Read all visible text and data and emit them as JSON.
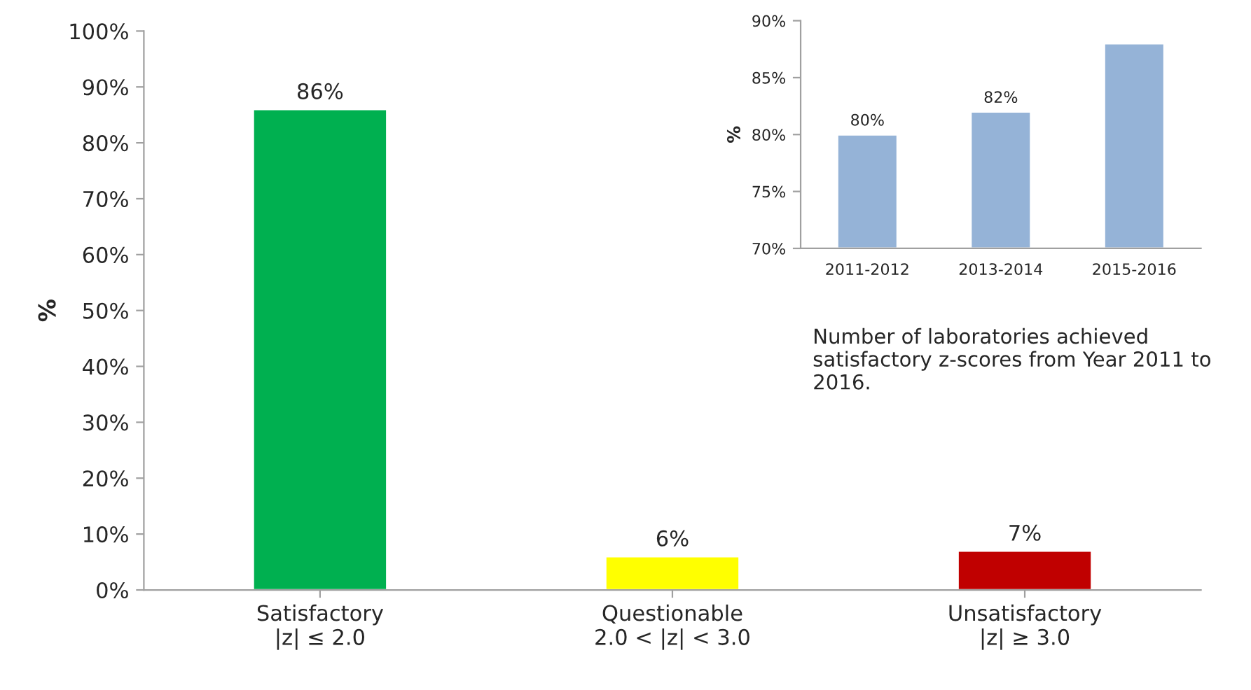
{
  "chart_data": [
    {
      "type": "bar",
      "ylabel": "%",
      "categories": [
        "Satisfactory\n|z| ≤ 2.0",
        "Questionable\n2.0 < |z| < 3.0",
        "Unsatisfactory\n|z| ≥ 3.0"
      ],
      "values": [
        86,
        6,
        7
      ],
      "colors": [
        "#00b050",
        "#ffff00",
        "#c00000"
      ],
      "ylim": [
        0,
        100
      ],
      "yticks": [
        {
          "value": 0,
          "label": "0%"
        },
        {
          "value": 10,
          "label": "10%"
        },
        {
          "value": 20,
          "label": "20%"
        },
        {
          "value": 30,
          "label": "30%"
        },
        {
          "value": 40,
          "label": "40%"
        },
        {
          "value": 50,
          "label": "50%"
        },
        {
          "value": 60,
          "label": "60%"
        },
        {
          "value": 70,
          "label": "70%"
        },
        {
          "value": 80,
          "label": "80%"
        },
        {
          "value": 90,
          "label": "90%"
        },
        {
          "value": 100,
          "label": "100%"
        }
      ],
      "value_labels": [
        "86%",
        "6%",
        "7%"
      ],
      "grid": false,
      "legend": false
    },
    {
      "type": "bar",
      "ylabel": "%",
      "categories": [
        "2011-2012",
        "2013-2014",
        "2015-2016"
      ],
      "values": [
        80,
        82,
        88
      ],
      "color": "#95b3d7",
      "ylim": [
        70,
        90
      ],
      "yticks": [
        {
          "value": 70,
          "label": "70%"
        },
        {
          "value": 75,
          "label": "75%"
        },
        {
          "value": 80,
          "label": "80%"
        },
        {
          "value": 85,
          "label": "85%"
        },
        {
          "value": 90,
          "label": "90%"
        }
      ],
      "value_labels": [
        "80%",
        "82%",
        null
      ],
      "annotations": [
        "Number of laboratories achieved satisfactory z-scores from Year 2011 to 2016."
      ],
      "grid": false,
      "legend": false
    }
  ]
}
